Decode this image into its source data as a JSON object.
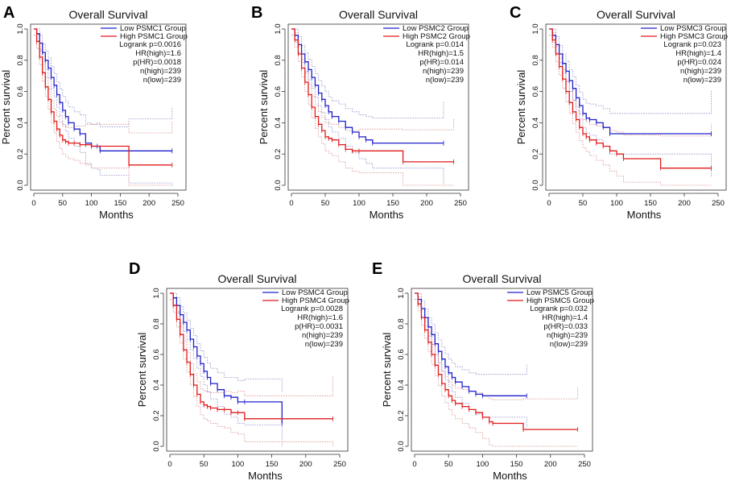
{
  "figure": {
    "panel_letters": [
      "A",
      "B",
      "C",
      "D",
      "E"
    ]
  },
  "colors": {
    "low": "#2020cc",
    "high": "#e21b1b",
    "ci_low": "#8a8ac8",
    "ci_high": "#d98a8a",
    "axis": "#333333"
  },
  "chart_data": [
    {
      "type": "line",
      "panel": "A",
      "title": "Overall Survival",
      "xlabel": "Months",
      "ylabel": "Percent survival",
      "xlim": [
        0,
        250
      ],
      "ylim": [
        0,
        1
      ],
      "xticks": [
        "0",
        "50",
        "100",
        "150",
        "200",
        "250"
      ],
      "yticks": [
        "0.0",
        "0.2",
        "0.4",
        "0.6",
        "0.8",
        "1.0"
      ],
      "legend": [
        "Low PSMC1 Group",
        "High PSMC1 Group"
      ],
      "stats": [
        "Logrank p=0.0016",
        "HR(high)=1.6",
        "p(HR)=0.0018",
        "n(high)=239",
        "n(low)=239"
      ],
      "series": [
        {
          "name": "Low PSMC1 Group",
          "x": [
            0,
            5,
            10,
            15,
            20,
            25,
            30,
            35,
            40,
            45,
            50,
            55,
            60,
            70,
            80,
            90,
            100,
            110,
            115,
            165,
            240
          ],
          "y": [
            1.0,
            0.97,
            0.91,
            0.85,
            0.8,
            0.75,
            0.69,
            0.64,
            0.58,
            0.53,
            0.48,
            0.44,
            0.4,
            0.36,
            0.33,
            0.27,
            0.25,
            0.25,
            0.22,
            0.22,
            0.22
          ]
        },
        {
          "name": "High PSMC1 Group",
          "x": [
            0,
            5,
            10,
            15,
            20,
            25,
            30,
            35,
            40,
            45,
            50,
            55,
            60,
            70,
            80,
            90,
            100,
            165,
            240
          ],
          "y": [
            1.0,
            0.92,
            0.82,
            0.72,
            0.63,
            0.55,
            0.47,
            0.41,
            0.36,
            0.32,
            0.29,
            0.28,
            0.27,
            0.27,
            0.26,
            0.26,
            0.25,
            0.13,
            0.13
          ]
        }
      ]
    },
    {
      "type": "line",
      "panel": "B",
      "title": "Overall Survival",
      "xlabel": "Months",
      "ylabel": "Percent survival",
      "xlim": [
        0,
        250
      ],
      "ylim": [
        0,
        1
      ],
      "xticks": [
        "0",
        "50",
        "100",
        "150",
        "200",
        "250"
      ],
      "yticks": [
        "0.0",
        "0.2",
        "0.4",
        "0.6",
        "0.8",
        "1.0"
      ],
      "legend": [
        "Low PSMC2 Group",
        "High PSMC2 Group"
      ],
      "stats": [
        "Logrank p=0.014",
        "HR(high)=1.5",
        "p(HR)=0.014",
        "n(high)=239",
        "n(low)=239"
      ],
      "series": [
        {
          "name": "Low PSMC2 Group",
          "x": [
            0,
            5,
            10,
            15,
            20,
            25,
            30,
            35,
            40,
            45,
            50,
            55,
            60,
            70,
            80,
            90,
            100,
            110,
            120,
            225
          ],
          "y": [
            1.0,
            0.96,
            0.9,
            0.84,
            0.79,
            0.74,
            0.69,
            0.64,
            0.59,
            0.55,
            0.51,
            0.47,
            0.44,
            0.41,
            0.37,
            0.34,
            0.31,
            0.29,
            0.27,
            0.27
          ]
        },
        {
          "name": "High PSMC2 Group",
          "x": [
            0,
            5,
            10,
            15,
            20,
            25,
            30,
            35,
            40,
            45,
            50,
            55,
            60,
            70,
            80,
            90,
            100,
            165,
            240
          ],
          "y": [
            1.0,
            0.93,
            0.84,
            0.75,
            0.66,
            0.58,
            0.5,
            0.44,
            0.39,
            0.35,
            0.31,
            0.3,
            0.29,
            0.26,
            0.23,
            0.22,
            0.22,
            0.15,
            0.15
          ]
        }
      ]
    },
    {
      "type": "line",
      "panel": "C",
      "title": "Overall Survival",
      "xlabel": "Months",
      "ylabel": "Percent survival",
      "xlim": [
        0,
        250
      ],
      "ylim": [
        0,
        1
      ],
      "xticks": [
        "0",
        "50",
        "100",
        "150",
        "200",
        "250"
      ],
      "yticks": [
        "0.0",
        "0.2",
        "0.4",
        "0.6",
        "0.8",
        "1.0"
      ],
      "legend": [
        "Low PSMC3 Group",
        "High PSMC3 Group"
      ],
      "stats": [
        "Logrank p=0.023",
        "HR(high)=1.4",
        "p(HR)=0.024",
        "n(high)=239",
        "n(low)=239"
      ],
      "series": [
        {
          "name": "Low PSMC3 Group",
          "x": [
            0,
            5,
            10,
            15,
            20,
            25,
            30,
            35,
            40,
            45,
            50,
            55,
            60,
            70,
            80,
            90,
            240
          ],
          "y": [
            1.0,
            0.96,
            0.9,
            0.84,
            0.78,
            0.73,
            0.67,
            0.62,
            0.56,
            0.51,
            0.46,
            0.43,
            0.42,
            0.4,
            0.37,
            0.33,
            0.33
          ]
        },
        {
          "name": "High PSMC3 Group",
          "x": [
            0,
            5,
            10,
            15,
            20,
            25,
            30,
            35,
            40,
            45,
            50,
            55,
            60,
            70,
            80,
            90,
            100,
            110,
            165,
            240
          ],
          "y": [
            1.0,
            0.93,
            0.84,
            0.76,
            0.68,
            0.6,
            0.53,
            0.47,
            0.42,
            0.37,
            0.33,
            0.31,
            0.29,
            0.27,
            0.25,
            0.22,
            0.2,
            0.17,
            0.11,
            0.11
          ]
        }
      ]
    },
    {
      "type": "line",
      "panel": "D",
      "title": "Overall Survival",
      "xlabel": "Months",
      "ylabel": "Percent survival",
      "xlim": [
        0,
        250
      ],
      "ylim": [
        0,
        1
      ],
      "xticks": [
        "0",
        "50",
        "100",
        "150",
        "200",
        "250"
      ],
      "yticks": [
        "0.0",
        "0.2",
        "0.4",
        "0.6",
        "0.8",
        "1.0"
      ],
      "legend": [
        "Low PSMC4 Group",
        "High PSMC4 Group"
      ],
      "stats": [
        "Logrank p=0.0028",
        "HR(high)=1.6",
        "p(HR)=0.0031",
        "n(high)=239",
        "n(low)=239"
      ],
      "series": [
        {
          "name": "Low PSMC4 Group",
          "x": [
            0,
            5,
            10,
            15,
            20,
            25,
            30,
            35,
            40,
            45,
            50,
            55,
            60,
            70,
            80,
            90,
            100,
            110,
            165
          ],
          "y": [
            1.0,
            0.97,
            0.92,
            0.86,
            0.81,
            0.76,
            0.7,
            0.65,
            0.59,
            0.54,
            0.49,
            0.45,
            0.41,
            0.37,
            0.33,
            0.32,
            0.29,
            0.29,
            0.15
          ]
        },
        {
          "name": "High PSMC4 Group",
          "x": [
            0,
            5,
            10,
            15,
            20,
            25,
            30,
            35,
            40,
            45,
            50,
            55,
            60,
            70,
            80,
            90,
            100,
            110,
            240
          ],
          "y": [
            1.0,
            0.92,
            0.83,
            0.73,
            0.63,
            0.55,
            0.47,
            0.4,
            0.34,
            0.29,
            0.27,
            0.26,
            0.25,
            0.24,
            0.24,
            0.22,
            0.22,
            0.18,
            0.18
          ]
        }
      ]
    },
    {
      "type": "line",
      "panel": "E",
      "title": "Overall Survival",
      "xlabel": "Months",
      "ylabel": "Percent survival",
      "xlim": [
        0,
        250
      ],
      "ylim": [
        0,
        1
      ],
      "xticks": [
        "0",
        "50",
        "100",
        "150",
        "200",
        "250"
      ],
      "yticks": [
        "0.0",
        "0.2",
        "0.4",
        "0.6",
        "0.8",
        "1.0"
      ],
      "legend": [
        "Low PSMC5 Group",
        "High PSMC5 Group"
      ],
      "stats": [
        "Logrank p=0.032",
        "HR(high)=1.4",
        "p(HR)=0.033",
        "n(high)=239",
        "n(low)=239"
      ],
      "series": [
        {
          "name": "Low PSMC5 Group",
          "x": [
            0,
            5,
            10,
            15,
            20,
            25,
            30,
            35,
            40,
            45,
            50,
            55,
            60,
            70,
            80,
            90,
            100,
            165
          ],
          "y": [
            1.0,
            0.96,
            0.9,
            0.84,
            0.78,
            0.73,
            0.67,
            0.62,
            0.57,
            0.52,
            0.48,
            0.45,
            0.42,
            0.39,
            0.36,
            0.34,
            0.33,
            0.33
          ]
        },
        {
          "name": "High PSMC5 Group",
          "x": [
            0,
            5,
            10,
            15,
            20,
            25,
            30,
            35,
            40,
            45,
            50,
            55,
            60,
            70,
            80,
            90,
            100,
            110,
            115,
            160,
            240
          ],
          "y": [
            1.0,
            0.93,
            0.84,
            0.76,
            0.68,
            0.6,
            0.53,
            0.47,
            0.41,
            0.37,
            0.33,
            0.3,
            0.28,
            0.26,
            0.24,
            0.22,
            0.19,
            0.16,
            0.15,
            0.11,
            0.11
          ]
        }
      ]
    }
  ]
}
